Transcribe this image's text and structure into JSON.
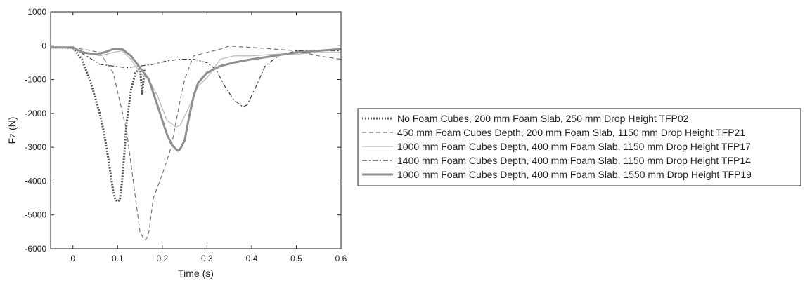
{
  "chart_data": {
    "type": "line",
    "title": "",
    "xlabel": "Time (s)",
    "ylabel": "Fz (N)",
    "xlim": [
      -0.05,
      0.6
    ],
    "ylim": [
      -6000,
      1000
    ],
    "xticks": [
      0,
      0.1,
      0.2,
      0.3,
      0.4,
      0.5,
      0.6
    ],
    "xtick_labels": [
      "0",
      "0.1",
      "0.2",
      "0.3",
      "0.4",
      "0.5",
      "0.6"
    ],
    "yticks": [
      1000,
      0,
      -1000,
      -2000,
      -3000,
      -4000,
      -5000,
      -6000
    ],
    "ytick_labels": [
      "1000",
      "0",
      "-1000",
      "-2000",
      "-3000",
      "-4000",
      "-5000",
      "-6000"
    ],
    "grid": false,
    "legend_position": "right-outside",
    "series": [
      {
        "name": "No Foam Cubes, 200 mm Foam Slab, 250 mm Drop Height TFP02",
        "color": "#555555",
        "style": "dotted",
        "x": [
          -0.05,
          0.0,
          0.02,
          0.04,
          0.06,
          0.07,
          0.08,
          0.09,
          0.095,
          0.1,
          0.105,
          0.11,
          0.115,
          0.12,
          0.13,
          0.14,
          0.15,
          0.155,
          0.16
        ],
        "y": [
          -50,
          -60,
          -400,
          -1100,
          -2000,
          -2600,
          -3400,
          -4300,
          -4550,
          -4600,
          -4550,
          -4000,
          -3200,
          -2300,
          -1300,
          -800,
          -650,
          -1450,
          -700
        ]
      },
      {
        "name": "450 mm Foam Cubes Depth, 200 mm Foam Slab, 1150 mm Drop Height TFP21",
        "color": "#777777",
        "style": "dashed",
        "x": [
          -0.05,
          0.0,
          0.03,
          0.06,
          0.09,
          0.12,
          0.14,
          0.15,
          0.16,
          0.165,
          0.17,
          0.18,
          0.2,
          0.22,
          0.24,
          0.25,
          0.27,
          0.3,
          0.33,
          0.35,
          0.4,
          0.45,
          0.5,
          0.55,
          0.6
        ],
        "y": [
          -50,
          -60,
          -120,
          -200,
          -800,
          -2500,
          -4500,
          -5500,
          -5750,
          -5700,
          -5500,
          -4500,
          -3800,
          -3000,
          -1600,
          -1000,
          -300,
          -200,
          -100,
          -10,
          -50,
          -100,
          -150,
          -300,
          -400
        ]
      },
      {
        "name": "1000 mm Foam Cubes Depth, 400 mm Foam Slab, 1150 mm Drop Height TFP17",
        "color": "#b8b8b8",
        "style": "solid",
        "x": [
          -0.05,
          0.0,
          0.03,
          0.06,
          0.09,
          0.11,
          0.13,
          0.15,
          0.17,
          0.19,
          0.21,
          0.23,
          0.24,
          0.26,
          0.28,
          0.3,
          0.33,
          0.36,
          0.4,
          0.45,
          0.5,
          0.55,
          0.6
        ],
        "y": [
          -50,
          -60,
          -200,
          -300,
          -200,
          -150,
          -400,
          -800,
          -1000,
          -1500,
          -2200,
          -2400,
          -2350,
          -1800,
          -1200,
          -950,
          -400,
          -300,
          -300,
          -250,
          -250,
          -200,
          -200
        ]
      },
      {
        "name": "1400 mm Foam Cubes Depth, 400 mm Foam Slab, 1150 mm Drop Height TFP14",
        "color": "#3a3a3a",
        "style": "dashdot",
        "x": [
          -0.05,
          0.0,
          0.03,
          0.06,
          0.09,
          0.12,
          0.15,
          0.18,
          0.21,
          0.24,
          0.27,
          0.3,
          0.32,
          0.34,
          0.36,
          0.38,
          0.39,
          0.41,
          0.43,
          0.46,
          0.5,
          0.55,
          0.6
        ],
        "y": [
          -50,
          -60,
          -300,
          -550,
          -600,
          -650,
          -600,
          -550,
          -450,
          -400,
          -400,
          -500,
          -700,
          -1200,
          -1600,
          -1800,
          -1750,
          -1200,
          -600,
          -300,
          -150,
          -150,
          -150
        ]
      },
      {
        "name": "1000 mm Foam Cubes Depth, 400 mm Foam Slab, 1550 mm Drop Height TFP19",
        "color": "#8f8f8f",
        "style": "thick",
        "x": [
          -0.05,
          0.0,
          0.02,
          0.05,
          0.07,
          0.09,
          0.11,
          0.13,
          0.15,
          0.17,
          0.19,
          0.2,
          0.21,
          0.22,
          0.23,
          0.235,
          0.24,
          0.25,
          0.26,
          0.27,
          0.28,
          0.3,
          0.33,
          0.36,
          0.4,
          0.45,
          0.5,
          0.55,
          0.6
        ],
        "y": [
          -50,
          -50,
          -200,
          -250,
          -200,
          -100,
          -100,
          -300,
          -650,
          -1000,
          -1800,
          -2200,
          -2600,
          -2900,
          -3050,
          -3100,
          -3050,
          -2800,
          -2100,
          -1500,
          -1100,
          -800,
          -600,
          -500,
          -400,
          -300,
          -200,
          -150,
          -100
        ]
      }
    ]
  }
}
